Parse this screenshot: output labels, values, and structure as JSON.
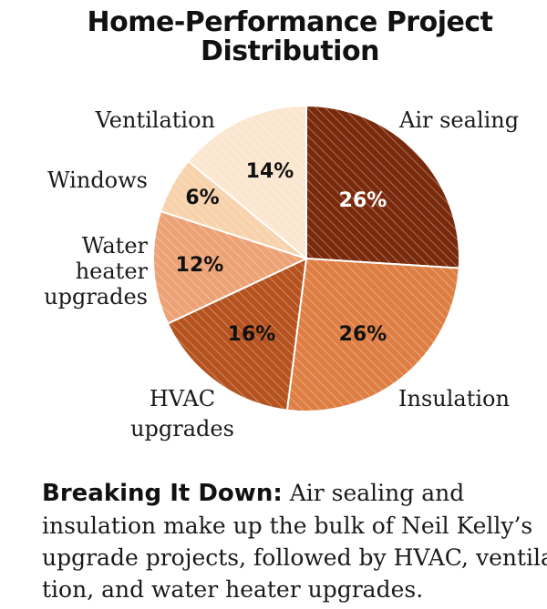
{
  "chart_data": {
    "type": "pie",
    "title": [
      "Home-Performance Project",
      "Distribution"
    ],
    "slices": [
      {
        "label": [
          "Air sealing"
        ],
        "value": 26,
        "display": "26%",
        "color": "#7a2a0c",
        "pct_color": "#ffffff"
      },
      {
        "label": [
          "Insulation"
        ],
        "value": 26,
        "display": "26%",
        "color": "#de7e43",
        "pct_color": "#111111"
      },
      {
        "label": [
          "HVAC",
          "upgrades"
        ],
        "value": 16,
        "display": "16%",
        "color": "#b5521e",
        "pct_color": "#111111"
      },
      {
        "label": [
          "Water",
          "heater",
          "upgrades"
        ],
        "value": 12,
        "display": "12%",
        "color": "#eca274",
        "pct_color": "#111111"
      },
      {
        "label": [
          "Windows"
        ],
        "value": 6,
        "display": "6%",
        "color": "#f7d2ab",
        "pct_color": "#111111"
      },
      {
        "label": [
          "Ventilation"
        ],
        "value": 14,
        "display": "14%",
        "color": "#fbe6cf",
        "pct_color": "#111111"
      }
    ],
    "start": "12 o'clock",
    "direction": "clockwise",
    "legend": "none"
  },
  "caption": {
    "lead": "Breaking It Down:",
    "lines": [
      "Air sealing and",
      "insulation make up the bulk of Neil Kelly’s",
      "upgrade projects, followed by HVAC, ventila-",
      "tion, and water heater upgrades."
    ]
  }
}
